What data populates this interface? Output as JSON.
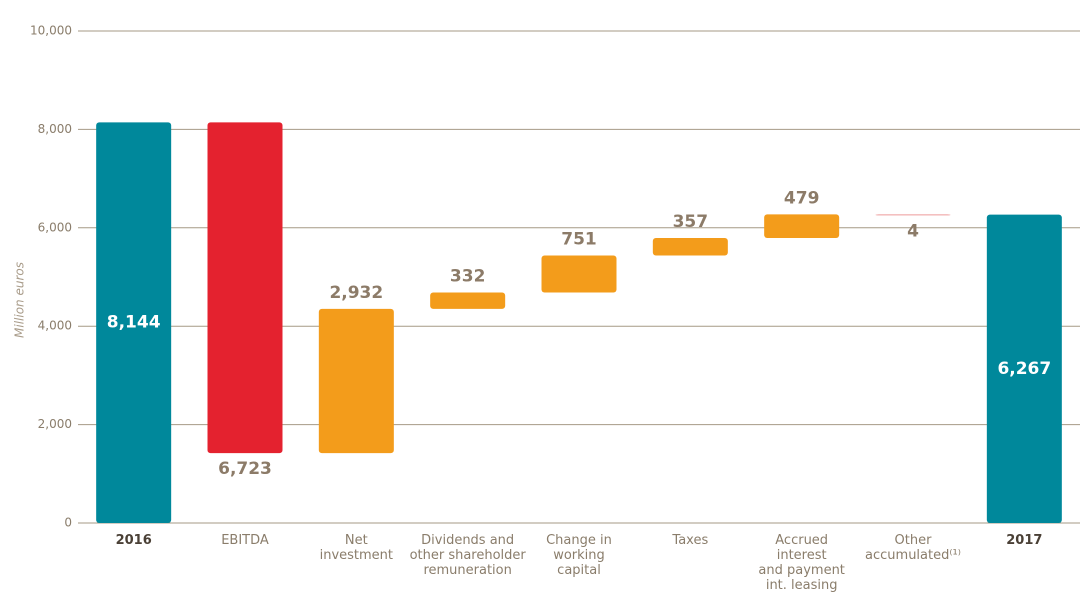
{
  "chart_data": {
    "type": "waterfall",
    "y_label": "Million euros",
    "categories": [
      "2016",
      "EBITDA",
      "Net\ninvestment",
      "Dividends and\nother shareholder\nremuneration",
      "Change in\nworking\ncapital",
      "Taxes",
      "Accrued\ninterest\nand payment\nint. leasing",
      "Other\naccumulated⁽¹⁾",
      "2017"
    ],
    "values": [
      8144,
      -6723,
      2932,
      332,
      751,
      357,
      479,
      -4,
      6267
    ],
    "value_labels": [
      "8,144",
      "6,723",
      "2,932",
      "332",
      "751",
      "357",
      "479",
      "4",
      "6,267"
    ],
    "colors": [
      "#00889b",
      "#e4222f",
      "#f39c1b",
      "#f39c1b",
      "#f39c1b",
      "#f39c1b",
      "#f39c1b",
      "#ee9a9a",
      "#00889b"
    ],
    "ylim": [
      0,
      10000
    ],
    "yticks": [
      0,
      {
        "value": 2000,
        "label": "2,000"
      },
      {
        "value": 4000,
        "label": "4,000"
      },
      {
        "value": 6000,
        "label": "6,000"
      },
      {
        "value": 8000,
        "label": "8,000"
      },
      {
        "value": 10000,
        "label": "10,000"
      }
    ],
    "grid": true
  }
}
